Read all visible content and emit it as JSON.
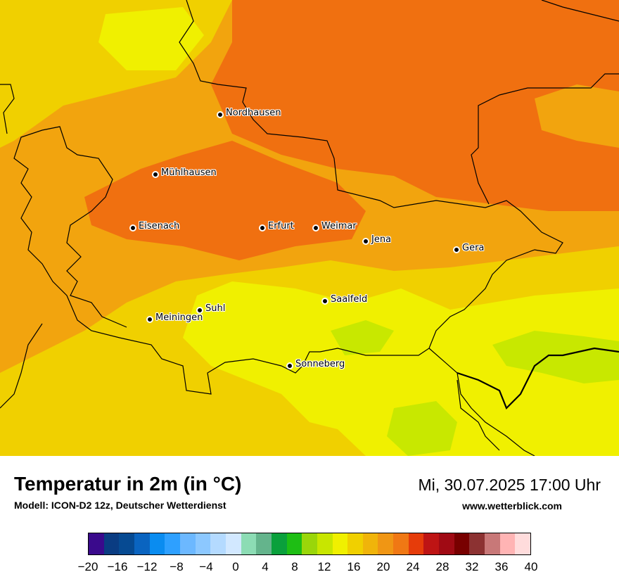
{
  "map": {
    "cities": [
      {
        "name": "Nordhausen",
        "id": "nordhausen"
      },
      {
        "name": "Mühlhausen",
        "id": "muehlhausen"
      },
      {
        "name": "Eisenach",
        "id": "eisenach"
      },
      {
        "name": "Erfurt",
        "id": "erfurt"
      },
      {
        "name": "Weimar",
        "id": "weimar"
      },
      {
        "name": "Jena",
        "id": "jena"
      },
      {
        "name": "Gera",
        "id": "gera"
      },
      {
        "name": "Suhl",
        "id": "suhl"
      },
      {
        "name": "Meiningen",
        "id": "meiningen"
      },
      {
        "name": "Saalfeld",
        "id": "saalfeld"
      },
      {
        "name": "Sonneberg",
        "id": "sonneberg"
      }
    ],
    "colors": {
      "warm_orange": "#f07010",
      "orange": "#f2a40e",
      "yellow": "#f0d000",
      "lime": "#f0f000",
      "light_green": "#c8e800"
    }
  },
  "header": {
    "title": "Temperatur in 2m (in °C)",
    "model": "Modell: ICON-D2 12z, Deutscher Wetterdienst",
    "datetime": "Mi, 30.07.2025 17:00 Uhr",
    "website": "www.wetterblick.com"
  },
  "legend": {
    "colors": [
      "#3a0a8c",
      "#0a3c82",
      "#064a92",
      "#0a64c0",
      "#0a8cf0",
      "#2ea0ff",
      "#6cb8ff",
      "#8cc8ff",
      "#b4daff",
      "#d2e8ff",
      "#8cdcb4",
      "#64b48c",
      "#0aa03c",
      "#1ebe14",
      "#9ad60a",
      "#c8e600",
      "#f0f000",
      "#f0d000",
      "#f0b40a",
      "#f09614",
      "#f07814",
      "#e63c0a",
      "#be1414",
      "#a00a14",
      "#780000",
      "#8c3232",
      "#c87878",
      "#ffb4b4",
      "#ffdcdc"
    ],
    "ticks": [
      "−20",
      "−16",
      "−12",
      "−8",
      "−4",
      "0",
      "4",
      "8",
      "12",
      "16",
      "20",
      "24",
      "28",
      "32",
      "36",
      "40"
    ]
  }
}
